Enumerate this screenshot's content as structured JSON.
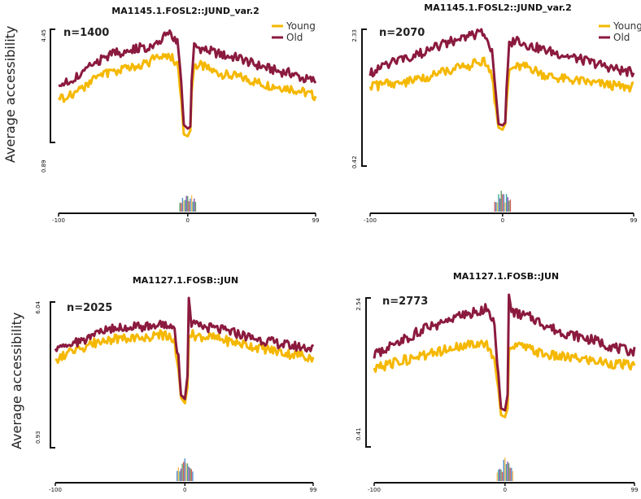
{
  "figure": {
    "ylabel": "Average accessibility"
  },
  "colors": {
    "young": "#F5B800",
    "old": "#8B1A3E",
    "axis": "#111111"
  },
  "chart_data": [
    {
      "type": "line",
      "title": "MA1145.1.FOSL2::JUND_var.2",
      "n_label": "n=1400",
      "ylabel": "Average accessibility",
      "ylim": [
        0.89,
        4.45
      ],
      "yticks": [
        "0.89",
        "4.45"
      ],
      "xlim": [
        -100,
        99
      ],
      "xticks": [
        "-100",
        "0",
        "99"
      ],
      "legend": [
        "Young",
        "Old"
      ],
      "legend_position": "top-right",
      "series": [
        {
          "name": "Young",
          "x": [
            -100,
            -90,
            -80,
            -70,
            -60,
            -50,
            -40,
            -30,
            -20,
            -14,
            -8,
            -5,
            -3,
            0,
            2,
            3,
            5,
            10,
            20,
            30,
            40,
            50,
            60,
            70,
            80,
            90,
            99
          ],
          "y": [
            2.6,
            2.75,
            2.9,
            3.2,
            3.3,
            3.4,
            3.5,
            3.6,
            3.75,
            3.8,
            3.55,
            2.6,
            1.7,
            1.65,
            1.8,
            2.8,
            3.5,
            3.5,
            3.35,
            3.25,
            3.2,
            3.1,
            3.0,
            2.95,
            2.9,
            2.8,
            2.7
          ]
        },
        {
          "name": "Old",
          "x": [
            -100,
            -90,
            -80,
            -70,
            -60,
            -50,
            -40,
            -30,
            -20,
            -14,
            -8,
            -5,
            -3,
            0,
            2,
            3,
            5,
            10,
            20,
            30,
            40,
            50,
            60,
            70,
            80,
            90,
            99
          ],
          "y": [
            2.95,
            3.1,
            3.35,
            3.6,
            3.8,
            3.85,
            3.95,
            4.0,
            4.2,
            4.35,
            4.1,
            3.0,
            1.95,
            1.85,
            1.9,
            3.1,
            4.0,
            3.95,
            3.85,
            3.75,
            3.7,
            3.55,
            3.45,
            3.35,
            3.3,
            3.15,
            3.1
          ]
        }
      ]
    },
    {
      "type": "line",
      "title": "MA1145.1.FOSL2::JUND_var.2",
      "n_label": "n=2070",
      "ylim": [
        0.42,
        2.33
      ],
      "yticks": [
        "0.42",
        "2.33"
      ],
      "xlim": [
        -100,
        99
      ],
      "xticks": [
        "-100",
        "0",
        "99"
      ],
      "legend": [
        "Young",
        "Old"
      ],
      "legend_position": "top-right",
      "series": [
        {
          "name": "Young",
          "x": [
            -100,
            -90,
            -80,
            -70,
            -60,
            -50,
            -40,
            -30,
            -20,
            -14,
            -8,
            -5,
            -3,
            0,
            2,
            3,
            5,
            10,
            20,
            30,
            40,
            50,
            60,
            70,
            80,
            90,
            99
          ],
          "y": [
            1.52,
            1.55,
            1.57,
            1.6,
            1.65,
            1.7,
            1.75,
            1.8,
            1.85,
            1.9,
            1.7,
            1.2,
            0.95,
            0.92,
            1.0,
            1.3,
            1.75,
            1.8,
            1.8,
            1.7,
            1.65,
            1.62,
            1.6,
            1.57,
            1.55,
            1.52,
            1.52
          ]
        },
        {
          "name": "Old",
          "x": [
            -100,
            -90,
            -80,
            -70,
            -60,
            -50,
            -40,
            -30,
            -20,
            -14,
            -8,
            -5,
            -3,
            0,
            2,
            3,
            5,
            10,
            20,
            30,
            40,
            50,
            60,
            70,
            80,
            90,
            99
          ],
          "y": [
            1.72,
            1.8,
            1.9,
            1.95,
            2.0,
            2.08,
            2.15,
            2.2,
            2.25,
            2.3,
            2.0,
            1.4,
            1.0,
            0.98,
            1.02,
            1.5,
            2.1,
            2.2,
            2.1,
            2.05,
            2.0,
            1.95,
            1.9,
            1.85,
            1.8,
            1.75,
            1.72
          ]
        }
      ]
    },
    {
      "type": "line",
      "title": "MA1127.1.FOSB::JUN",
      "n_label": "n=2025",
      "ylabel": "Average accessibility",
      "ylim": [
        0.93,
        6.04
      ],
      "yticks": [
        "0.93",
        "6.04"
      ],
      "xlim": [
        -100,
        99
      ],
      "xticks": [
        "-100",
        "0",
        "99"
      ],
      "series": [
        {
          "name": "Young",
          "x": [
            -100,
            -90,
            -80,
            -70,
            -60,
            -50,
            -40,
            -30,
            -20,
            -14,
            -8,
            -5,
            -3,
            0,
            2,
            3,
            5,
            10,
            20,
            30,
            40,
            50,
            60,
            70,
            80,
            90,
            99
          ],
          "y": [
            3.8,
            4.0,
            4.2,
            4.4,
            4.5,
            4.55,
            4.6,
            4.6,
            4.7,
            4.65,
            4.4,
            3.5,
            2.4,
            2.2,
            2.8,
            4.6,
            4.7,
            4.65,
            4.6,
            4.5,
            4.4,
            4.3,
            4.2,
            4.1,
            4.0,
            3.95,
            3.85
          ]
        },
        {
          "name": "Old",
          "x": [
            -100,
            -90,
            -80,
            -70,
            -60,
            -50,
            -40,
            -30,
            -20,
            -14,
            -8,
            -5,
            -3,
            0,
            2,
            3,
            5,
            10,
            20,
            30,
            40,
            50,
            60,
            70,
            80,
            90,
            99
          ],
          "y": [
            4.1,
            4.3,
            4.5,
            4.65,
            4.85,
            4.95,
            5.0,
            5.0,
            5.1,
            5.05,
            4.8,
            3.8,
            2.5,
            2.35,
            3.2,
            6.04,
            5.1,
            5.0,
            4.95,
            4.85,
            4.75,
            4.6,
            4.5,
            4.4,
            4.3,
            4.25,
            4.2
          ]
        }
      ]
    },
    {
      "type": "line",
      "title": "MA1127.1.FOSB::JUN",
      "n_label": "n=2773",
      "ylim": [
        0.41,
        2.54
      ],
      "yticks": [
        "0.41",
        "2.54"
      ],
      "xlim": [
        -100,
        99
      ],
      "xticks": [
        "-100",
        "0",
        "99"
      ],
      "series": [
        {
          "name": "Young",
          "x": [
            -100,
            -90,
            -80,
            -70,
            -60,
            -50,
            -40,
            -30,
            -20,
            -14,
            -8,
            -5,
            -3,
            0,
            2,
            3,
            5,
            10,
            20,
            30,
            40,
            50,
            60,
            70,
            80,
            90,
            99
          ],
          "y": [
            1.45,
            1.5,
            1.55,
            1.6,
            1.65,
            1.7,
            1.75,
            1.78,
            1.8,
            1.82,
            1.6,
            1.1,
            0.75,
            0.72,
            0.85,
            1.7,
            1.8,
            1.78,
            1.72,
            1.65,
            1.62,
            1.6,
            1.58,
            1.55,
            1.52,
            1.5,
            1.48
          ]
        },
        {
          "name": "Old",
          "x": [
            -100,
            -90,
            -80,
            -70,
            -60,
            -50,
            -40,
            -30,
            -20,
            -14,
            -8,
            -5,
            -3,
            0,
            2,
            3,
            5,
            10,
            20,
            30,
            40,
            50,
            60,
            70,
            80,
            90,
            99
          ],
          "y": [
            1.65,
            1.75,
            1.85,
            1.95,
            2.05,
            2.1,
            2.2,
            2.25,
            2.3,
            2.35,
            2.1,
            1.3,
            0.85,
            0.82,
            1.05,
            2.54,
            2.3,
            2.25,
            2.2,
            2.1,
            2.0,
            1.95,
            1.9,
            1.85,
            1.78,
            1.72,
            1.7
          ]
        }
      ]
    }
  ]
}
